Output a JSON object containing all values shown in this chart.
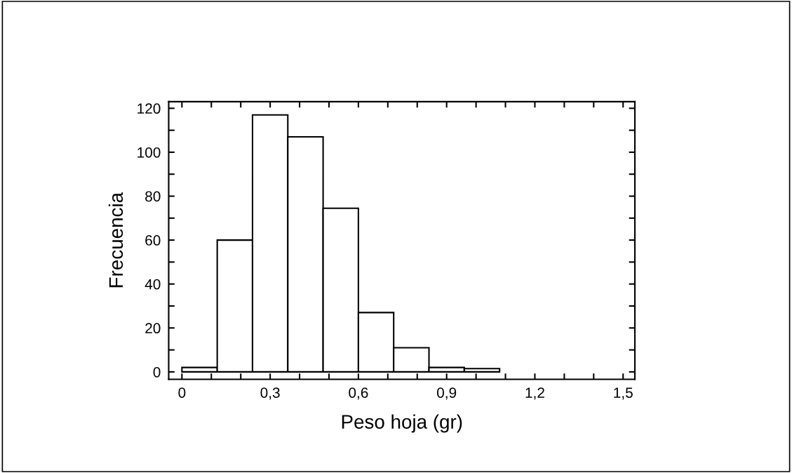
{
  "chart_data": {
    "type": "histogram",
    "xlabel": "Peso hoja (gr)",
    "ylabel": "Frecuencia",
    "bins": [
      0,
      0.12,
      0.24,
      0.36,
      0.48,
      0.6,
      0.72,
      0.84,
      0.96,
      1.08,
      1.2
    ],
    "values": [
      2,
      60,
      117,
      107,
      74.5,
      27,
      11,
      2,
      1.5,
      0
    ],
    "color": "#ffffff",
    "xlim": [
      -0.045,
      1.54
    ],
    "ylim": [
      -3.4,
      123
    ],
    "xticks": [
      {
        "value": 0,
        "label": "0"
      },
      {
        "value": 0.1,
        "label": null
      },
      {
        "value": 0.2,
        "label": null
      },
      {
        "value": 0.3,
        "label": "0,3"
      },
      {
        "value": 0.4,
        "label": null
      },
      {
        "value": 0.5,
        "label": null
      },
      {
        "value": 0.6,
        "label": "0,6"
      },
      {
        "value": 0.7,
        "label": null
      },
      {
        "value": 0.8,
        "label": null
      },
      {
        "value": 0.9,
        "label": "0,9"
      },
      {
        "value": 1.0,
        "label": null
      },
      {
        "value": 1.1,
        "label": null
      },
      {
        "value": 1.2,
        "label": "1,2"
      },
      {
        "value": 1.3,
        "label": null
      },
      {
        "value": 1.4,
        "label": null
      },
      {
        "value": 1.5,
        "label": "1,5"
      }
    ],
    "yticks": [
      0,
      {
        "value": 10,
        "label": null
      },
      20,
      {
        "value": 30,
        "label": null
      },
      40,
      {
        "value": 50,
        "label": null
      },
      60,
      {
        "value": 70,
        "label": null
      },
      80,
      {
        "value": 90,
        "label": null
      },
      100,
      {
        "value": 110,
        "label": null
      },
      120
    ],
    "grid": false,
    "legend": false
  }
}
